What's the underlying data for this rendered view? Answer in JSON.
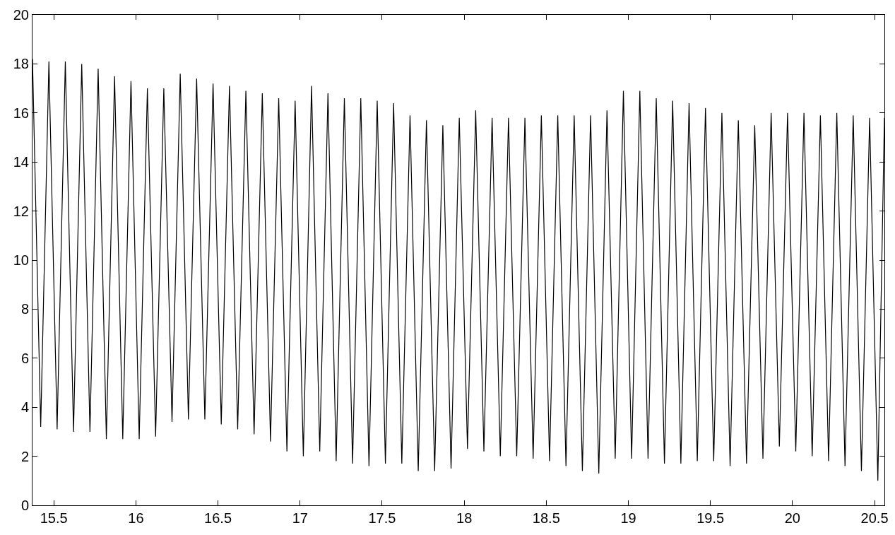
{
  "chart_data": {
    "type": "line",
    "xlim": [
      15.37,
      20.56
    ],
    "ylim": [
      0,
      20
    ],
    "xticks": [
      15.5,
      16,
      16.5,
      17,
      17.5,
      18,
      18.5,
      19,
      19.5,
      20,
      20.5
    ],
    "yticks": [
      0,
      2,
      4,
      6,
      8,
      10,
      12,
      14,
      16,
      18,
      20
    ],
    "marker": "none",
    "line_style": "solid",
    "series": [
      {
        "color": "#000000",
        "x": [
          15.37,
          15.42,
          15.47,
          15.52,
          15.57,
          15.62,
          15.67,
          15.72,
          15.77,
          15.82,
          15.87,
          15.92,
          15.97,
          16.02,
          16.07,
          16.12,
          16.17,
          16.22,
          16.27,
          16.32,
          16.37,
          16.42,
          16.47,
          16.52,
          16.57,
          16.62,
          16.67,
          16.72,
          16.77,
          16.82,
          16.87,
          16.92,
          16.97,
          17.02,
          17.07,
          17.12,
          17.17,
          17.22,
          17.27,
          17.32,
          17.37,
          17.42,
          17.47,
          17.52,
          17.57,
          17.62,
          17.67,
          17.72,
          17.77,
          17.82,
          17.87,
          17.92,
          17.97,
          18.02,
          18.07,
          18.12,
          18.17,
          18.22,
          18.27,
          18.32,
          18.37,
          18.42,
          18.47,
          18.52,
          18.57,
          18.62,
          18.67,
          18.72,
          18.77,
          18.82,
          18.87,
          18.92,
          18.97,
          19.02,
          19.07,
          19.12,
          19.17,
          19.22,
          19.27,
          19.32,
          19.37,
          19.42,
          19.47,
          19.52,
          19.57,
          19.62,
          19.67,
          19.72,
          19.77,
          19.82,
          19.87,
          19.92,
          19.97,
          20.02,
          20.07,
          20.12,
          20.17,
          20.22,
          20.27,
          20.32,
          20.37,
          20.42,
          20.47,
          20.52,
          20.56
        ],
        "values": [
          18.2,
          3.2,
          18.1,
          3.1,
          18.1,
          3.0,
          18.0,
          3.0,
          17.8,
          2.7,
          17.5,
          2.7,
          17.3,
          2.7,
          17.0,
          2.8,
          17.0,
          3.4,
          17.6,
          3.5,
          17.4,
          3.5,
          17.2,
          3.3,
          17.1,
          3.1,
          16.9,
          2.9,
          16.8,
          2.6,
          16.6,
          2.2,
          16.5,
          2.0,
          17.1,
          2.2,
          16.8,
          1.8,
          16.6,
          1.7,
          16.6,
          1.6,
          16.5,
          1.7,
          16.4,
          1.7,
          15.9,
          1.4,
          15.7,
          1.4,
          15.5,
          1.5,
          15.8,
          2.3,
          16.1,
          2.2,
          15.8,
          2.0,
          15.8,
          2.0,
          15.8,
          1.9,
          15.9,
          1.8,
          15.9,
          1.6,
          15.9,
          1.4,
          15.9,
          1.3,
          16.1,
          1.9,
          16.9,
          1.9,
          16.9,
          1.9,
          16.6,
          1.7,
          16.5,
          1.7,
          16.4,
          1.8,
          16.2,
          1.8,
          16.0,
          1.6,
          15.7,
          1.7,
          15.5,
          1.9,
          16.0,
          2.4,
          16.0,
          2.2,
          16.0,
          2.0,
          15.9,
          1.8,
          16.0,
          1.6,
          15.9,
          1.4,
          15.8,
          1.0,
          15.8
        ]
      }
    ]
  }
}
